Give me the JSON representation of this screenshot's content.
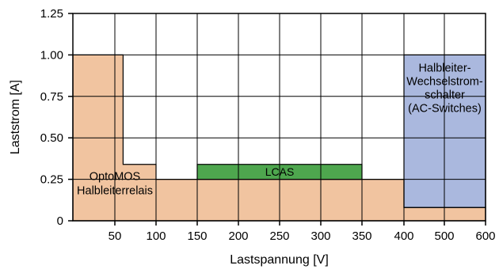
{
  "chart_data": {
    "type": "area",
    "xlabel": "Lastspannung [V]",
    "ylabel": "Laststrom [A]",
    "x_ticks": [
      "50",
      "100",
      "150",
      "200",
      "250",
      "300",
      "350",
      "400",
      "500",
      "600"
    ],
    "y_ticks": [
      "0",
      "0.25",
      "0.50",
      "0.75",
      "1.00",
      "1.25"
    ],
    "grid": true,
    "regions": [
      {
        "name": "OptoMOS Halbleiterrelais",
        "label_lines": [
          "OptoMOS",
          "Halbleiterrelais"
        ],
        "color": "#f1c4a0",
        "boundary": [
          [
            0,
            1.0
          ],
          [
            60,
            1.0
          ],
          [
            60,
            0.34
          ],
          [
            100,
            0.34
          ],
          [
            100,
            0.25
          ],
          [
            400,
            0.25
          ],
          [
            400,
            0.08
          ],
          [
            600,
            0.08
          ],
          [
            600,
            0
          ]
        ]
      },
      {
        "name": "LCAS",
        "label_lines": [
          "LCAS"
        ],
        "color": "#4ea64e",
        "x_range": [
          150,
          350
        ],
        "y_range": [
          0.25,
          0.34
        ]
      },
      {
        "name": "Halbleiter-Wechselstromschalter (AC-Switches)",
        "label_lines": [
          "Halbleiter-",
          "Wechselstrom-",
          "schalter",
          "(AC-Switches)"
        ],
        "color": "#aab8de",
        "x_range": [
          400,
          600
        ],
        "y_range": [
          0.08,
          1.0
        ]
      }
    ]
  }
}
